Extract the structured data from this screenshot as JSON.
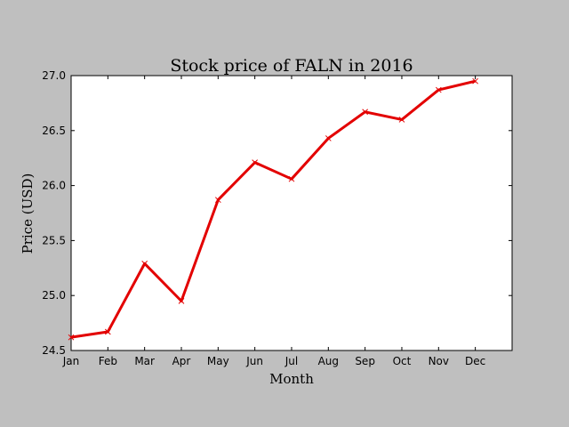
{
  "chart_data": {
    "type": "line",
    "title": "Stock price of FALN in 2016",
    "xlabel": "Month",
    "ylabel": "Price (USD)",
    "categories": [
      "Jan",
      "Feb",
      "Mar",
      "Apr",
      "May",
      "Jun",
      "Jul",
      "Aug",
      "Sep",
      "Oct",
      "Nov",
      "Dec"
    ],
    "series": [
      {
        "values": [
          24.62,
          24.67,
          25.29,
          24.95,
          25.87,
          26.21,
          26.06,
          26.43,
          26.67,
          26.6,
          26.87,
          26.95
        ]
      }
    ],
    "ylim": [
      24.5,
      27.0
    ],
    "yticks": [
      "24.5",
      "25.0",
      "25.5",
      "26.0",
      "26.5",
      "27.0"
    ],
    "grid": false,
    "marker": "x",
    "colors": {
      "line": "#e30000",
      "background": "#bfbfbf",
      "plot_area": "#ffffff"
    }
  }
}
